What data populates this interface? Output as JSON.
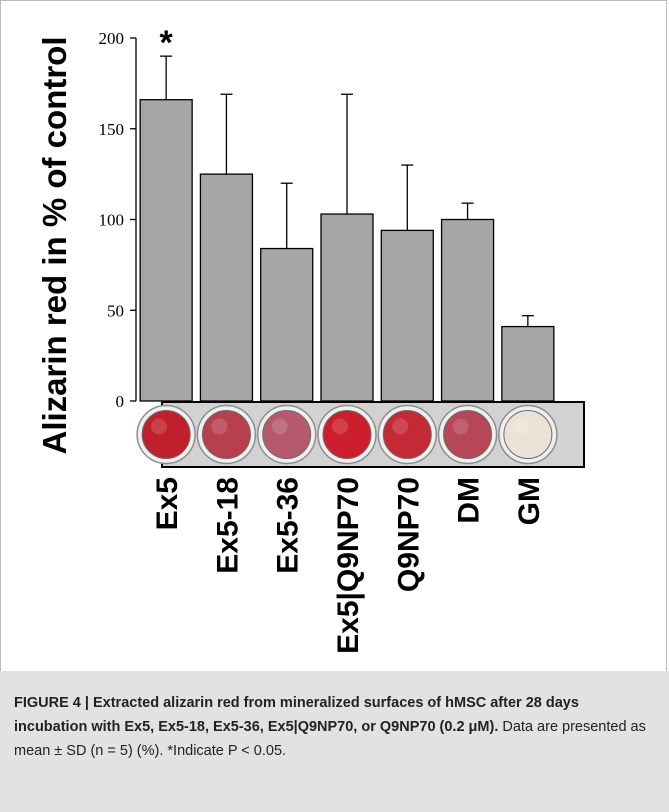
{
  "chart_data": {
    "type": "bar",
    "ylabel": "Alizarin red in % of control",
    "ylim": [
      0,
      200
    ],
    "yticks": [
      0,
      50,
      100,
      150,
      200
    ],
    "categories": [
      "Ex5",
      "Ex5-18",
      "Ex5-36",
      "Ex5|Q9NP70",
      "Q9NP70",
      "DM",
      "GM"
    ],
    "values": [
      166,
      125,
      84,
      103,
      94,
      100,
      41
    ],
    "errors": [
      24,
      44,
      36,
      66,
      36,
      9,
      6
    ],
    "significance": [
      "*",
      "",
      "",
      "",
      "",
      "",
      ""
    ],
    "bar_color": "#a6a6a6",
    "well_colors": [
      "#c0202c",
      "#b8404e",
      "#b45a6c",
      "#cc1e2c",
      "#c42a36",
      "#b64658",
      "#ede2d8"
    ],
    "grid": false,
    "legend": "none"
  },
  "caption": {
    "bold": "FIGURE 4 | Extracted alizarin red from mineralized surfaces of hMSC after 28 days incubation with Ex5, Ex5-18, Ex5-36, Ex5|Q9NP70, or Q9NP70 (0.2 μM).",
    "plain": " Data are presented as mean ± SD (n = 5) (%). *Indicate P < 0.05."
  }
}
